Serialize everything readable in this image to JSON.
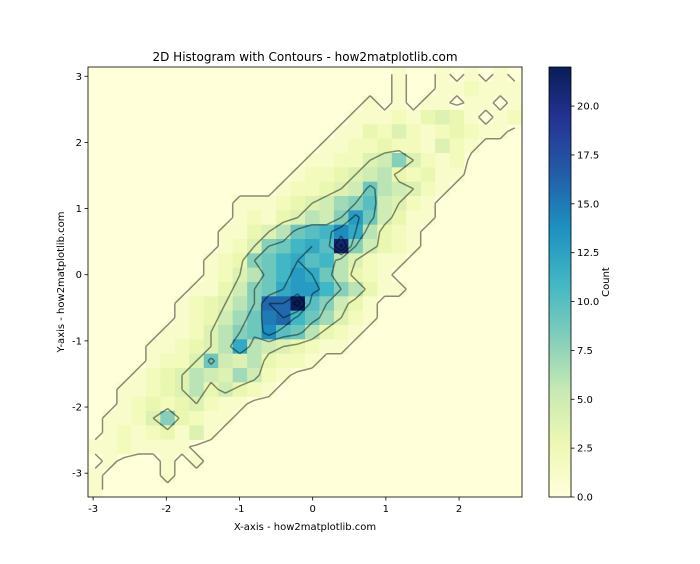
{
  "chart_data": {
    "type": "heatmap",
    "title": "2D Histogram with Contours - how2matplotlib.com",
    "xlabel": "X-axis - how2matplotlib.com",
    "ylabel": "Y-axis - how2matplotlib.com",
    "xlim": [
      -3.07,
      2.86
    ],
    "ylim": [
      -3.36,
      3.14
    ],
    "xticks": [
      -3,
      -2,
      -1,
      0,
      1,
      2
    ],
    "yticks": [
      -3,
      -2,
      -1,
      0,
      1,
      2,
      3
    ],
    "bins": [
      30,
      30
    ],
    "colormap": "YlGnBu",
    "colormap_stops": [
      "#ffffd9",
      "#edf8b1",
      "#c7e9b4",
      "#7fcdbb",
      "#41b6c4",
      "#1d91c0",
      "#225ea8",
      "#253494",
      "#081d58"
    ],
    "vmin": 0,
    "vmax": 22,
    "colorbar": {
      "label": "Count",
      "ticks": [
        "0.0",
        "2.5",
        "5.0",
        "7.5",
        "10.0",
        "12.5",
        "15.0",
        "17.5",
        "20.0"
      ],
      "tick_values": [
        0,
        2.5,
        5,
        7.5,
        10,
        12.5,
        15,
        17.5,
        20
      ]
    },
    "contour_levels": [
      0.5,
      4,
      8,
      12,
      16,
      20
    ],
    "contour_color": "#000000",
    "counts_rows_top_to_bottom": [
      [
        0,
        0,
        0,
        0,
        0,
        0,
        0,
        0,
        0,
        0,
        0,
        0,
        0,
        0,
        0,
        0,
        0,
        0,
        0,
        0,
        0,
        1,
        0,
        0,
        1,
        0,
        1,
        0,
        1,
        0
      ],
      [
        0,
        0,
        0,
        0,
        0,
        0,
        0,
        0,
        0,
        0,
        0,
        0,
        0,
        0,
        0,
        0,
        0,
        0,
        0,
        0,
        0,
        1,
        0,
        0,
        1,
        1,
        2,
        1,
        1,
        1
      ],
      [
        0,
        0,
        0,
        0,
        0,
        0,
        0,
        0,
        0,
        0,
        0,
        0,
        0,
        0,
        0,
        0,
        0,
        0,
        0,
        1,
        0,
        1,
        0,
        1,
        1,
        0,
        1,
        1,
        0,
        1
      ],
      [
        0,
        0,
        0,
        0,
        0,
        0,
        0,
        0,
        0,
        0,
        0,
        0,
        0,
        0,
        0,
        0,
        0,
        0,
        1,
        1,
        1,
        2,
        1,
        3,
        4,
        3,
        1,
        0,
        1,
        2
      ],
      [
        0,
        0,
        0,
        0,
        0,
        0,
        0,
        0,
        0,
        0,
        0,
        0,
        0,
        0,
        0,
        0,
        0,
        1,
        1,
        3,
        2,
        4,
        2,
        1,
        2,
        3,
        2,
        1,
        1,
        0
      ],
      [
        0,
        0,
        0,
        0,
        0,
        0,
        0,
        0,
        0,
        0,
        0,
        0,
        0,
        0,
        0,
        0,
        1,
        1,
        2,
        2,
        3,
        2,
        2,
        1,
        4,
        2,
        1,
        0,
        0,
        0
      ],
      [
        0,
        0,
        0,
        0,
        0,
        0,
        0,
        0,
        0,
        0,
        0,
        0,
        0,
        0,
        0,
        1,
        1,
        2,
        2,
        4,
        5,
        8,
        4,
        2,
        1,
        2,
        0,
        0,
        0,
        0
      ],
      [
        0,
        0,
        0,
        0,
        0,
        0,
        0,
        0,
        0,
        0,
        0,
        0,
        0,
        0,
        1,
        2,
        2,
        3,
        4,
        5,
        6,
        3,
        2,
        3,
        1,
        1,
        0,
        0,
        0,
        0
      ],
      [
        0,
        0,
        0,
        0,
        0,
        0,
        0,
        0,
        0,
        0,
        0,
        0,
        0,
        1,
        2,
        2,
        3,
        4,
        5,
        9,
        6,
        5,
        4,
        2,
        1,
        0,
        0,
        0,
        0,
        0
      ],
      [
        0,
        0,
        0,
        0,
        0,
        0,
        0,
        0,
        0,
        0,
        1,
        1,
        1,
        2,
        3,
        4,
        5,
        7,
        8,
        10,
        5,
        4,
        2,
        1,
        0,
        0,
        0,
        0,
        0,
        0
      ],
      [
        0,
        0,
        0,
        0,
        0,
        0,
        0,
        0,
        0,
        0,
        1,
        2,
        1,
        3,
        4,
        6,
        5,
        8,
        13,
        9,
        5,
        3,
        1,
        1,
        0,
        0,
        0,
        0,
        0,
        0
      ],
      [
        0,
        0,
        0,
        0,
        0,
        0,
        0,
        0,
        0,
        1,
        1,
        3,
        4,
        6,
        9,
        10,
        11,
        14,
        12,
        6,
        3,
        2,
        1,
        0,
        0,
        0,
        0,
        0,
        0,
        0
      ],
      [
        0,
        0,
        0,
        0,
        0,
        0,
        0,
        0,
        0,
        1,
        2,
        4,
        8,
        9,
        11,
        12,
        10,
        21,
        8,
        5,
        3,
        2,
        1,
        0,
        0,
        0,
        0,
        0,
        0,
        0
      ],
      [
        0,
        0,
        0,
        0,
        0,
        0,
        0,
        0,
        1,
        2,
        3,
        8,
        9,
        11,
        12,
        10,
        11,
        6,
        4,
        2,
        1,
        1,
        0,
        0,
        0,
        0,
        0,
        0,
        0,
        0
      ],
      [
        0,
        0,
        0,
        0,
        0,
        0,
        0,
        0,
        1,
        2,
        4,
        6,
        9,
        11,
        13,
        12,
        9,
        6,
        3,
        2,
        1,
        0,
        0,
        0,
        0,
        0,
        0,
        0,
        0,
        0
      ],
      [
        0,
        0,
        0,
        0,
        0,
        0,
        0,
        1,
        1,
        3,
        5,
        8,
        9,
        12,
        13,
        13,
        11,
        8,
        6,
        3,
        1,
        1,
        0,
        0,
        0,
        0,
        0,
        0,
        0,
        0
      ],
      [
        0,
        0,
        0,
        0,
        0,
        0,
        1,
        2,
        3,
        4,
        6,
        8,
        16,
        16,
        22,
        10,
        8,
        5,
        3,
        1,
        0,
        0,
        0,
        0,
        0,
        0,
        0,
        0,
        0,
        0
      ],
      [
        0,
        0,
        0,
        0,
        0,
        0,
        1,
        2,
        3,
        5,
        7,
        9,
        15,
        16,
        11,
        9,
        7,
        4,
        2,
        1,
        0,
        0,
        0,
        0,
        0,
        0,
        0,
        0,
        0,
        0
      ],
      [
        0,
        0,
        0,
        0,
        0,
        1,
        1,
        2,
        4,
        6,
        8,
        9,
        14,
        10,
        9,
        6,
        3,
        2,
        1,
        0,
        0,
        0,
        0,
        0,
        0,
        0,
        0,
        0,
        0,
        0
      ],
      [
        0,
        0,
        0,
        0,
        1,
        1,
        2,
        3,
        4,
        6,
        12,
        6,
        5,
        4,
        3,
        2,
        1,
        1,
        0,
        0,
        0,
        0,
        0,
        0,
        0,
        0,
        0,
        0,
        0,
        0
      ],
      [
        0,
        0,
        0,
        0,
        1,
        2,
        2,
        4,
        9,
        5,
        4,
        6,
        3,
        2,
        2,
        1,
        0,
        0,
        0,
        0,
        0,
        0,
        0,
        0,
        0,
        0,
        0,
        0,
        0,
        0
      ],
      [
        0,
        0,
        0,
        1,
        2,
        3,
        4,
        6,
        5,
        4,
        7,
        5,
        2,
        1,
        0,
        0,
        0,
        0,
        0,
        0,
        0,
        0,
        0,
        0,
        0,
        0,
        0,
        0,
        0,
        0
      ],
      [
        0,
        0,
        1,
        1,
        2,
        3,
        4,
        6,
        3,
        5,
        3,
        2,
        1,
        0,
        0,
        0,
        0,
        0,
        0,
        0,
        0,
        0,
        0,
        0,
        0,
        0,
        0,
        0,
        0,
        0
      ],
      [
        0,
        0,
        1,
        2,
        3,
        2,
        3,
        4,
        2,
        1,
        1,
        0,
        0,
        0,
        0,
        0,
        0,
        0,
        0,
        0,
        0,
        0,
        0,
        0,
        0,
        0,
        0,
        0,
        0,
        0
      ],
      [
        0,
        1,
        1,
        2,
        4,
        8,
        3,
        2,
        1,
        1,
        0,
        0,
        0,
        0,
        0,
        0,
        0,
        0,
        0,
        0,
        0,
        0,
        0,
        0,
        0,
        0,
        0,
        0,
        0,
        0
      ],
      [
        0,
        1,
        2,
        1,
        2,
        3,
        1,
        4,
        1,
        0,
        0,
        0,
        0,
        0,
        0,
        0,
        0,
        0,
        0,
        0,
        0,
        0,
        0,
        0,
        0,
        0,
        0,
        0,
        0,
        0
      ],
      [
        1,
        1,
        2,
        1,
        1,
        1,
        1,
        0,
        0,
        0,
        0,
        0,
        0,
        0,
        0,
        0,
        0,
        0,
        0,
        0,
        0,
        0,
        0,
        0,
        0,
        0,
        0,
        0,
        0,
        0
      ],
      [
        0,
        1,
        0,
        0,
        0,
        1,
        0,
        1,
        0,
        0,
        0,
        0,
        0,
        0,
        0,
        0,
        0,
        0,
        0,
        0,
        0,
        0,
        0,
        0,
        0,
        0,
        0,
        0,
        0,
        0
      ],
      [
        1,
        0,
        0,
        0,
        0,
        1,
        0,
        0,
        0,
        0,
        0,
        0,
        0,
        0,
        0,
        0,
        0,
        0,
        0,
        0,
        0,
        0,
        0,
        0,
        0,
        0,
        0,
        0,
        0,
        0
      ],
      [
        1,
        0,
        0,
        0,
        0,
        0,
        0,
        0,
        0,
        0,
        0,
        0,
        0,
        0,
        0,
        0,
        0,
        0,
        0,
        0,
        0,
        0,
        0,
        0,
        0,
        0,
        0,
        0,
        0,
        0
      ]
    ]
  }
}
